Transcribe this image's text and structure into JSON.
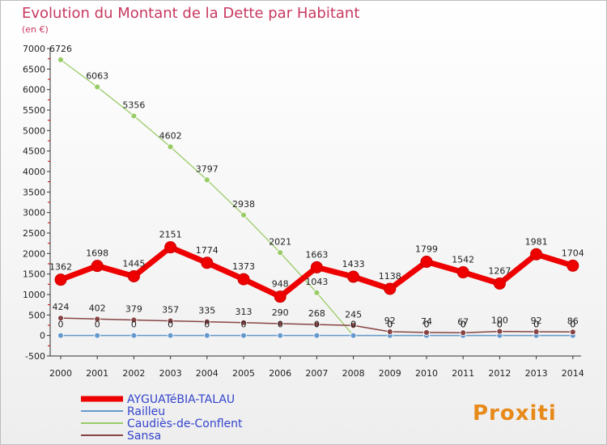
{
  "chart_data": {
    "type": "line",
    "title": "Evolution du Montant de la Dette par Habitant",
    "subtitle": "(en €)",
    "x": [
      "2000",
      "2001",
      "2002",
      "2003",
      "2004",
      "2005",
      "2006",
      "2007",
      "2008",
      "2009",
      "2010",
      "2011",
      "2012",
      "2013",
      "2014"
    ],
    "ylim": [
      -500,
      7000
    ],
    "yticks": [
      "-500",
      "0",
      "500",
      "1000",
      "1500",
      "2000",
      "2500",
      "3000",
      "3500",
      "4000",
      "4500",
      "5000",
      "5500",
      "6000",
      "6500",
      "7000"
    ],
    "grid": false,
    "legend_position": "bottom-left",
    "series": [
      {
        "name": "AYGUATéBIA-TALAU",
        "color": "#ee0000",
        "values": [
          1362,
          1698,
          1445,
          2151,
          1774,
          1373,
          948,
          1663,
          1433,
          1138,
          1799,
          1542,
          1267,
          1981,
          1704
        ],
        "labels": [
          "1362",
          "1698",
          "1445",
          "2151",
          "1774",
          "1373",
          "948",
          "1663",
          "1433",
          "1138",
          "1799",
          "1542",
          "1267",
          "1981",
          "1704"
        ]
      },
      {
        "name": "Railleu",
        "color": "#6699cc",
        "values": [
          0,
          0,
          0,
          0,
          0,
          0,
          0,
          0,
          0,
          0,
          0,
          0,
          0,
          0,
          0
        ],
        "labels": [
          "0",
          "0",
          "0",
          "0",
          "0",
          "0",
          "0",
          "0",
          "0",
          "0",
          "0",
          "0",
          "0",
          "0",
          "0"
        ]
      },
      {
        "name": "Caudiès-de-Conflent",
        "color": "#99cc66",
        "values": [
          6726,
          6063,
          5356,
          4602,
          3797,
          2938,
          2021,
          1043,
          0,
          0,
          0,
          0,
          0,
          0,
          0
        ],
        "labels": [
          "6726",
          "6063",
          "5356",
          "4602",
          "3797",
          "2938",
          "2021",
          "1043",
          "0",
          "0",
          "0",
          "0",
          "0",
          "0",
          "0"
        ]
      },
      {
        "name": "Sansa",
        "color": "#884444",
        "values": [
          424,
          402,
          379,
          357,
          335,
          313,
          290,
          268,
          245,
          92,
          74,
          67,
          100,
          92,
          86
        ],
        "labels": [
          "424",
          "402",
          "379",
          "357",
          "335",
          "313",
          "290",
          "268",
          "245",
          "92",
          "74",
          "67",
          "100",
          "92",
          "86"
        ]
      }
    ]
  },
  "brand": {
    "logo_text": "Proxiti"
  }
}
